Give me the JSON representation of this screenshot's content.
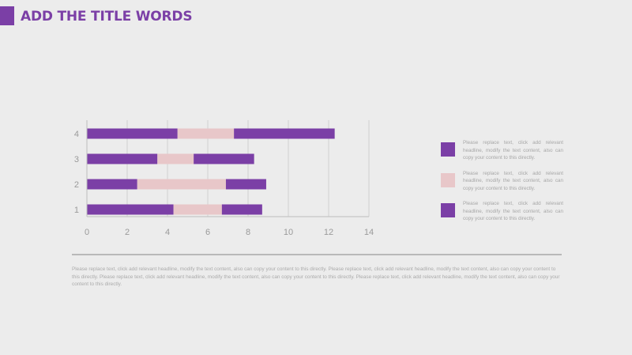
{
  "title": "ADD THE TITLE WORDS",
  "colors": {
    "accent": "#7b3fa6",
    "series_dark": "#7b3fa6",
    "series_light": "#e8c7c9",
    "axis_text": "#9a9a9a",
    "grid": "#d0d0d0"
  },
  "chart_data": {
    "type": "bar",
    "orientation": "horizontal",
    "stacked": true,
    "categories": [
      "1",
      "2",
      "3",
      "4"
    ],
    "series": [
      {
        "values": [
          4.3,
          2.5,
          3.5,
          4.5
        ],
        "color": "#7b3fa6"
      },
      {
        "values": [
          2.4,
          4.4,
          1.8,
          2.8
        ],
        "color": "#e8c7c9"
      },
      {
        "values": [
          2.0,
          2.0,
          3.0,
          5.0
        ],
        "color": "#7b3fa6"
      }
    ],
    "xlim": [
      0,
      14
    ],
    "xticks": [
      0,
      2,
      4,
      6,
      8,
      10,
      12,
      14
    ],
    "grid": "vertical",
    "legend": "right"
  },
  "legend": [
    {
      "color": "#7b3fa6",
      "text": "Please replace text, click add relevant headline, modify the text content, also can copy your content to this directly."
    },
    {
      "color": "#e8c7c9",
      "text": "Please replace text, click add relevant headline, modify the text content, also can copy your content to this directly."
    },
    {
      "color": "#7b3fa6",
      "text": "Please replace text, click add relevant headline, modify the text content, also can copy your content to this directly."
    }
  ],
  "body_text": "Please replace text, click add relevant headline, modify the text content, also can copy your content to this directly. Please replace text, click add relevant headline, modify the text content, also can copy your content to this directly. Please replace text, click add relevant headline, modify the text content, also can copy your content to this directly. Please replace text, click add relevant headline, modify the text content, also can copy your content to this directly."
}
